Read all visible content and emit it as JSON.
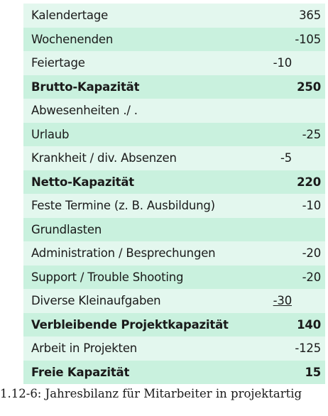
{
  "table": {
    "rows": [
      {
        "label": "Kalendertage",
        "value": "365",
        "bold": false,
        "align": "right",
        "underline": false
      },
      {
        "label": "Wochenenden",
        "value": "-105",
        "bold": false,
        "align": "right",
        "underline": false
      },
      {
        "label": "Feiertage",
        "value": "-10",
        "bold": false,
        "align": "mid",
        "underline": false
      },
      {
        "label": "Brutto-Kapazität",
        "value": "250",
        "bold": true,
        "align": "right",
        "underline": false
      },
      {
        "label": "Abwesenheiten ./ .",
        "value": "",
        "bold": false,
        "align": "right",
        "underline": false
      },
      {
        "label": "Urlaub",
        "value": "-25",
        "bold": false,
        "align": "right",
        "underline": false
      },
      {
        "label": "Krankheit / div. Absenzen",
        "value": "-5",
        "bold": false,
        "align": "mid",
        "underline": false
      },
      {
        "label": "Netto-Kapazität",
        "value": "220",
        "bold": true,
        "align": "right",
        "underline": false
      },
      {
        "label": "Feste Termine (z. B. Ausbildung)",
        "value": "-10",
        "bold": false,
        "align": "right",
        "underline": false
      },
      {
        "label": "Grundlasten",
        "value": "",
        "bold": false,
        "align": "right",
        "underline": false
      },
      {
        "label": "Administration / Besprechungen",
        "value": "-20",
        "bold": false,
        "align": "right",
        "underline": false
      },
      {
        "label": "Support / Trouble Shooting",
        "value": "-20",
        "bold": false,
        "align": "right",
        "underline": false
      },
      {
        "label": "Diverse Kleinaufgaben",
        "value": "-30",
        "bold": false,
        "align": "mid",
        "underline": true
      },
      {
        "label": "Verbleibende Projektkapazität",
        "value": "140",
        "bold": true,
        "align": "right",
        "underline": false
      },
      {
        "label": "Arbeit in Projekten",
        "value": "-125",
        "bold": false,
        "align": "right",
        "underline": false
      },
      {
        "label": "Freie Kapazität",
        "value": "15",
        "bold": true,
        "align": "right",
        "underline": false
      }
    ]
  },
  "caption": "1.12-6: Jahresbilanz für Mitarbeiter in projektartig",
  "colors": {
    "row_light": "#e3f7ee",
    "row_mid": "#c9f1de",
    "text": "#1a1a1a"
  }
}
